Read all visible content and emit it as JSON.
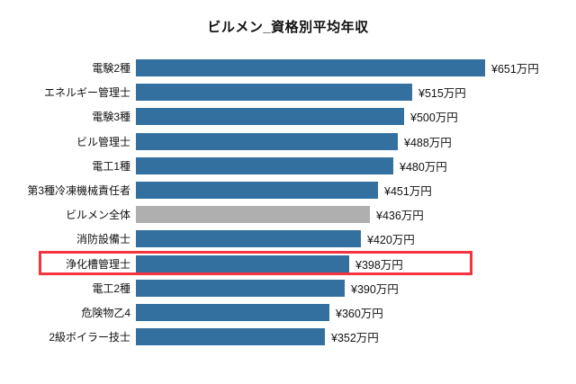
{
  "chart_data": {
    "type": "bar",
    "orientation": "horizontal",
    "title": "ビルメン_資格別平均年収",
    "categories": [
      "電験2種",
      "エネルギー管理士",
      "電験3種",
      "ビル管理士",
      "電工1種",
      "第3種冷凍機械責任者",
      "ビルメン全体",
      "消防設備士",
      "浄化槽管理士",
      "電工2種",
      "危険物乙4",
      "2級ボイラー技士"
    ],
    "values": [
      651,
      515,
      500,
      488,
      480,
      451,
      436,
      420,
      398,
      390,
      360,
      352
    ],
    "value_labels": [
      "¥651万円",
      "¥515万円",
      "¥500万円",
      "¥488万円",
      "¥480万円",
      "¥451万円",
      "¥436万円",
      "¥420万円",
      "¥398万円",
      "¥390万円",
      "¥360万円",
      "¥352万円"
    ],
    "unit": "万円",
    "xlim": [
      0,
      700
    ],
    "axes_visible": false,
    "grid": false,
    "legend": "none",
    "colors": {
      "bar_default": "#33709f",
      "bar_overall_gray": "#afafaf",
      "highlight_border": "#f63440",
      "text": "#111111",
      "background": "#ffffff"
    },
    "gray_bar_index": 6,
    "highlighted_index": 8,
    "highlighted_category": "浄化槽管理士"
  }
}
